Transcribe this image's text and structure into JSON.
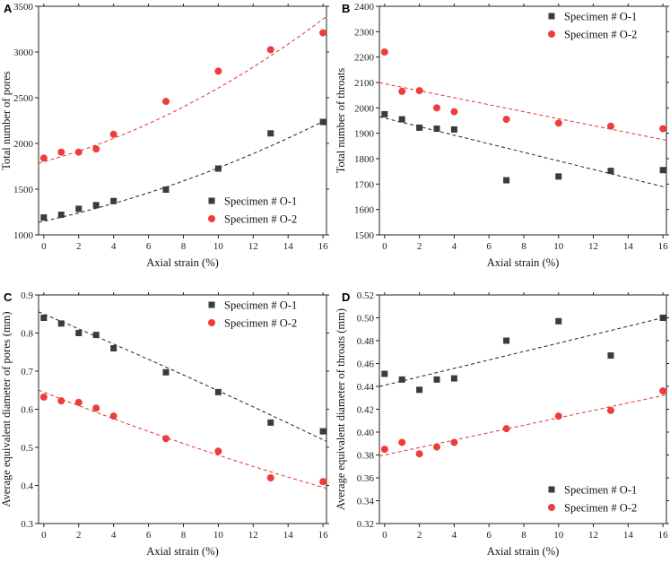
{
  "colors": {
    "series1": "#3b3b3b",
    "series2": "#ee3b3b",
    "fit1": "#222222",
    "fit2": "#e83030",
    "axis": "#222222"
  },
  "chart_data": [
    {
      "panel": "A",
      "type": "scatter",
      "title": "",
      "xlabel": "Axial strain (%)",
      "ylabel": "Total number of pores",
      "xlim": [
        -0.3,
        16.2
      ],
      "ylim": [
        1000,
        3500
      ],
      "xticks": [
        0,
        2,
        4,
        6,
        8,
        10,
        12,
        14,
        16
      ],
      "yticks": [
        1000,
        1500,
        2000,
        2500,
        3000,
        3500
      ],
      "tick_decimals": 0,
      "legend": "bottom-right",
      "series": [
        {
          "name": "Specimen # O-1",
          "marker": "square",
          "x": [
            0,
            1,
            2,
            3,
            4,
            7,
            10,
            13,
            16
          ],
          "y": [
            1190,
            1220,
            1285,
            1325,
            1370,
            1495,
            1725,
            2110,
            2235
          ],
          "fit": [
            0,
            1150,
            8,
            1590,
            16,
            2240
          ]
        },
        {
          "name": "Specimen # O-2",
          "marker": "circle",
          "x": [
            0,
            1,
            2,
            3,
            4,
            7,
            10,
            13,
            16
          ],
          "y": [
            1840,
            1905,
            1905,
            1940,
            2100,
            2460,
            2790,
            3025,
            3210
          ],
          "fit": [
            0,
            1800,
            8,
            2400,
            16,
            3360
          ]
        }
      ]
    },
    {
      "panel": "B",
      "type": "scatter",
      "title": "",
      "xlabel": "Axial strain (%)",
      "ylabel": "Total number of throats",
      "xlim": [
        -0.3,
        16.2
      ],
      "ylim": [
        1500,
        2400
      ],
      "xticks": [
        0,
        2,
        4,
        6,
        8,
        10,
        12,
        14,
        16
      ],
      "yticks": [
        1500,
        1600,
        1700,
        1800,
        1900,
        2000,
        2100,
        2200,
        2300,
        2400
      ],
      "tick_decimals": 0,
      "legend": "top-right",
      "series": [
        {
          "name": "Specimen # O-1",
          "marker": "square",
          "x": [
            0,
            1,
            2,
            3,
            4,
            7,
            10,
            13,
            16
          ],
          "y": [
            1975,
            1955,
            1922,
            1918,
            1915,
            1715,
            1730,
            1752,
            1755
          ],
          "fit": [
            0,
            1960,
            8,
            1825,
            16,
            1690
          ]
        },
        {
          "name": "Specimen # O-2",
          "marker": "circle",
          "x": [
            0,
            1,
            2,
            3,
            4,
            7,
            10,
            13,
            16
          ],
          "y": [
            2220,
            2065,
            2068,
            2000,
            1985,
            1955,
            1940,
            1928,
            1918
          ],
          "fit": [
            0,
            2095,
            8,
            1985,
            16,
            1875
          ]
        }
      ]
    },
    {
      "panel": "C",
      "type": "scatter",
      "title": "",
      "xlabel": "Axial strain (%)",
      "ylabel": "Average equivalent diameter of pores (mm)",
      "xlim": [
        -0.3,
        16.2
      ],
      "ylim": [
        0.3,
        0.9
      ],
      "xticks": [
        0,
        2,
        4,
        6,
        8,
        10,
        12,
        14,
        16
      ],
      "yticks": [
        0.3,
        0.4,
        0.5,
        0.6,
        0.7,
        0.8,
        0.9
      ],
      "tick_decimals": 1,
      "legend": "top-right",
      "series": [
        {
          "name": "Specimen # O-1",
          "marker": "square",
          "x": [
            0,
            1,
            2,
            3,
            4,
            7,
            10,
            13,
            16
          ],
          "y": [
            0.84,
            0.825,
            0.8,
            0.795,
            0.76,
            0.697,
            0.645,
            0.565,
            0.542
          ],
          "fit": [
            0,
            0.85,
            8,
            0.69,
            16,
            0.52
          ]
        },
        {
          "name": "Specimen # O-2",
          "marker": "circle",
          "x": [
            0,
            1,
            2,
            3,
            4,
            7,
            10,
            13,
            16
          ],
          "y": [
            0.632,
            0.622,
            0.618,
            0.603,
            0.582,
            0.523,
            0.49,
            0.42,
            0.41
          ],
          "fit": [
            0,
            0.645,
            8,
            0.51,
            16,
            0.395
          ]
        }
      ]
    },
    {
      "panel": "D",
      "type": "scatter",
      "title": "",
      "xlabel": "Axial strain (%)",
      "ylabel": "Average equivalent diameter of  throats (mm)",
      "xlim": [
        -0.3,
        16.2
      ],
      "ylim": [
        0.32,
        0.52
      ],
      "xticks": [
        0,
        2,
        4,
        6,
        8,
        10,
        12,
        14,
        16
      ],
      "yticks": [
        0.32,
        0.34,
        0.36,
        0.38,
        0.4,
        0.42,
        0.44,
        0.46,
        0.48,
        0.5,
        0.52
      ],
      "tick_decimals": 2,
      "legend": "bottom-right",
      "series": [
        {
          "name": "Specimen # O-1",
          "marker": "square",
          "x": [
            0,
            1,
            2,
            3,
            4,
            7,
            10,
            13,
            16
          ],
          "y": [
            0.451,
            0.446,
            0.437,
            0.446,
            0.447,
            0.48,
            0.497,
            0.467,
            0.5
          ],
          "fit": [
            0,
            0.441,
            8,
            0.4705,
            16,
            0.5
          ]
        },
        {
          "name": "Specimen # O-2",
          "marker": "circle",
          "x": [
            0,
            1,
            2,
            3,
            4,
            7,
            10,
            13,
            16
          ],
          "y": [
            0.385,
            0.391,
            0.381,
            0.387,
            0.391,
            0.403,
            0.414,
            0.419,
            0.436
          ],
          "fit": [
            0,
            0.38,
            8,
            0.406,
            16,
            0.432
          ]
        }
      ]
    }
  ]
}
